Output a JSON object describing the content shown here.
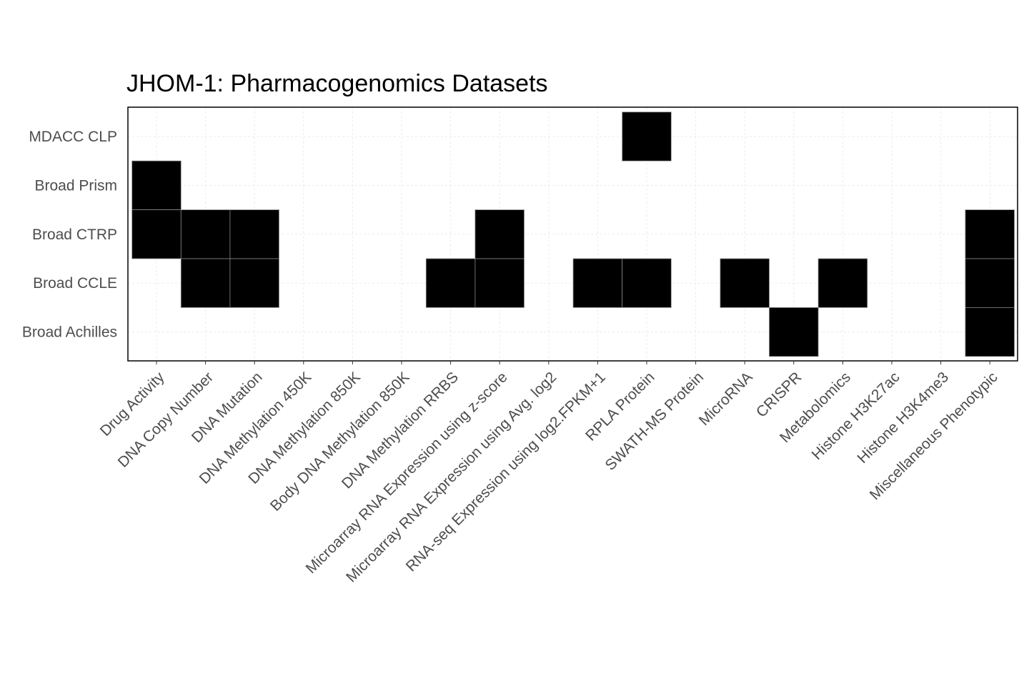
{
  "chart_data": {
    "type": "heatmap",
    "title": "JHOM-1: Pharmacogenomics Datasets",
    "xlabel": "",
    "ylabel": "",
    "x_categories": [
      "Drug Activity",
      "DNA Copy Number",
      "DNA Mutation",
      "DNA Methylation 450K",
      "DNA Methylation 850K",
      "Body DNA Methylation 850K",
      "DNA Methylation RRBS",
      "Microarray RNA Expression using z-score",
      "Microarray RNA Expression using Avg. log2",
      "RNA-seq Expression using log2.FPKM+1",
      "RPLA Protein",
      "SWATH-MS Protein",
      "MicroRNA",
      "CRISPR",
      "Metabolomics",
      "Histone H3K27ac",
      "Histone H3K4me3",
      "Miscellaneous Phenotypic"
    ],
    "y_categories": [
      "MDACC CLP",
      "Broad Prism",
      "Broad CTRP",
      "Broad CCLE",
      "Broad Achilles"
    ],
    "matrix": [
      [
        0,
        0,
        0,
        0,
        0,
        0,
        0,
        0,
        0,
        0,
        1,
        0,
        0,
        0,
        0,
        0,
        0,
        0
      ],
      [
        1,
        0,
        0,
        0,
        0,
        0,
        0,
        0,
        0,
        0,
        0,
        0,
        0,
        0,
        0,
        0,
        0,
        0
      ],
      [
        1,
        1,
        1,
        0,
        0,
        0,
        0,
        1,
        0,
        0,
        0,
        0,
        0,
        0,
        0,
        0,
        0,
        1
      ],
      [
        0,
        1,
        1,
        0,
        0,
        0,
        1,
        1,
        0,
        1,
        1,
        0,
        1,
        0,
        1,
        0,
        0,
        1
      ],
      [
        0,
        0,
        0,
        0,
        0,
        0,
        0,
        0,
        0,
        0,
        0,
        0,
        0,
        1,
        0,
        0,
        0,
        1
      ]
    ],
    "value_meaning": "filled cell = dataset available",
    "colors": {
      "filled": "#000000",
      "cell_border": "#888888",
      "panel_border": "#000000",
      "grid": "#ebebeb",
      "tick_text": "#4d4d4d",
      "title_text": "#000000"
    },
    "grid": true,
    "legend": "none"
  }
}
